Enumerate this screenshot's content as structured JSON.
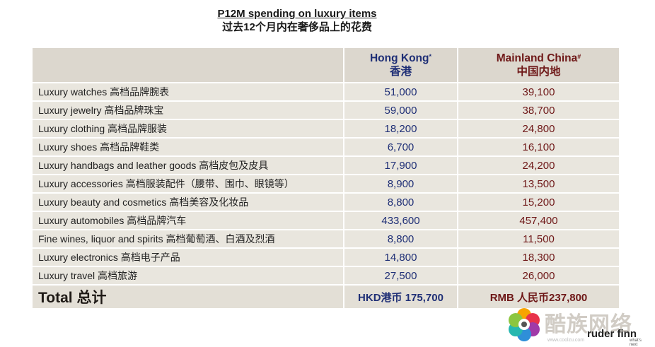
{
  "title": {
    "en": "P12M spending on luxury items",
    "zh": "过去12个月内在奢侈品上的花费"
  },
  "header": {
    "hk": {
      "en": "Hong Kong",
      "mark": "*",
      "zh": "香港"
    },
    "cn": {
      "en": "Mainland China",
      "mark": "#",
      "zh": "中国内地"
    }
  },
  "rows": [
    {
      "label": "Luxury watches 高档品牌腕表",
      "hk": "51,000",
      "cn": "39,100"
    },
    {
      "label": "Luxury jewelry 高档品牌珠宝",
      "hk": "59,000",
      "cn": "38,700"
    },
    {
      "label": "Luxury clothing 高档品牌服装",
      "hk": "18,200",
      "cn": "24,800"
    },
    {
      "label": "Luxury shoes 高档品牌鞋类",
      "hk": "6,700",
      "cn": "16,100"
    },
    {
      "label": "Luxury handbags and leather goods 高档皮包及皮具",
      "hk": "17,900",
      "cn": "24,200"
    },
    {
      "label": "Luxury accessories 高档服装配件（腰带、围巾、眼镜等）",
      "hk": "8,900",
      "cn": "13,500"
    },
    {
      "label": "Luxury beauty and cosmetics 高档美容及化妆品",
      "hk": "8,800",
      "cn": "15,200"
    },
    {
      "label": "Luxury automobiles 高档品牌汽车",
      "hk": "433,600",
      "cn": "457,400"
    },
    {
      "label": "Fine wines, liquor and spirits 高档葡萄酒、白酒及烈酒",
      "hk": "8,800",
      "cn": "11,500"
    },
    {
      "label": "Luxury electronics 高档电子产品",
      "hk": "14,800",
      "cn": "18,300"
    },
    {
      "label": "Luxury travel 高档旅游",
      "hk": "27,500",
      "cn": "26,000"
    }
  ],
  "total": {
    "label": "Total 总计",
    "hk": "HKD港币 175,700",
    "cn": "RMB 人民币237,800"
  },
  "watermark": {
    "cn": "酷族网络",
    "brand": "ruder finn",
    "tagline": "what's next",
    "url": "www.coolzu.com"
  },
  "colors": {
    "header_bg": "#dcd7ce",
    "row_bg": "#e9e6de",
    "hk_text": "#1f2f76",
    "cn_text": "#6e1717"
  }
}
